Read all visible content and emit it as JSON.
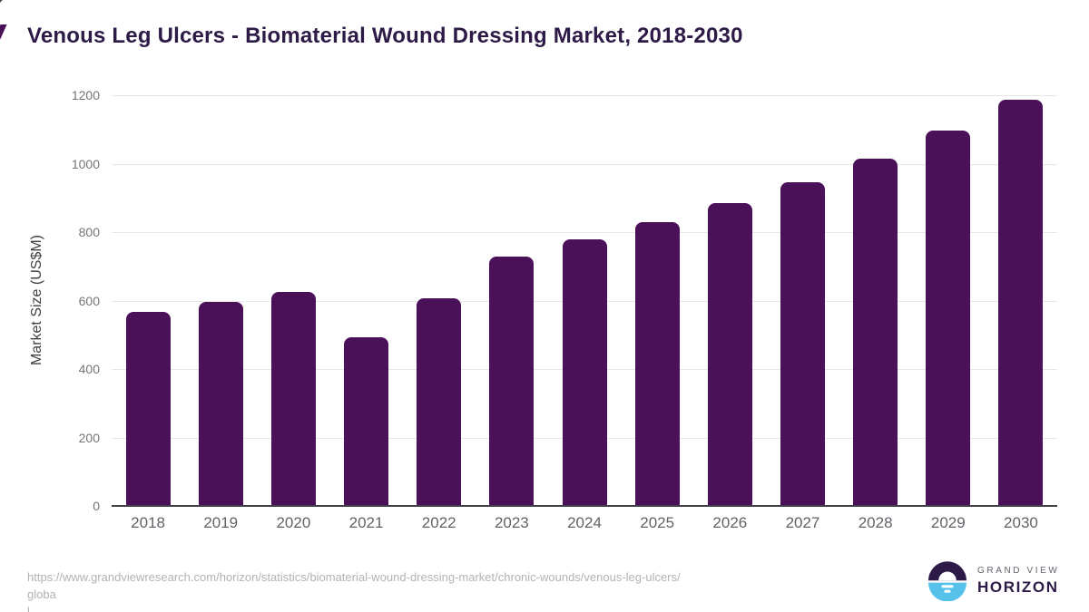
{
  "header": {
    "title": "Venous Leg Ulcers - Biomaterial Wound Dressing Market, 2018-2030"
  },
  "chart_data": {
    "type": "bar",
    "title": "Venous Leg Ulcers - Biomaterial Wound Dressing Market, 2018-2030",
    "categories": [
      "2018",
      "2019",
      "2020",
      "2021",
      "2022",
      "2023",
      "2024",
      "2025",
      "2026",
      "2027",
      "2028",
      "2029",
      "2030"
    ],
    "values": [
      568,
      596,
      624,
      493,
      608,
      729,
      778,
      828,
      884,
      946,
      1016,
      1096,
      1186
    ],
    "xlabel": "",
    "ylabel": "Market Size (US$M)",
    "ylim": [
      0,
      1200
    ],
    "ytick_step": 200,
    "yticks": [
      "0",
      "200",
      "400",
      "600",
      "800",
      "1000",
      "1200"
    ],
    "grid": true,
    "legend": "none",
    "bar_color": "#4A1159",
    "gridline_color": "#E7E7E7",
    "axis_line_color": "#3F3F46"
  },
  "footer": {
    "source_url_lines": [
      "https://www.grandviewresearch.com/horizon/statistics/biomaterial-wound-dressing-market/chronic-wounds/venous-leg-ulcers/globa",
      "l"
    ]
  },
  "logo": {
    "brand_top": "GRAND VIEW",
    "brand_bottom": "HORIZON",
    "mark_dark_color": "#2E1A47",
    "mark_blue_color": "#56C2EA"
  },
  "colors": {
    "title": "#2E1A47",
    "y_tick": "#757575",
    "x_tick": "#5F6368",
    "url_text": "#B2B2B7"
  }
}
